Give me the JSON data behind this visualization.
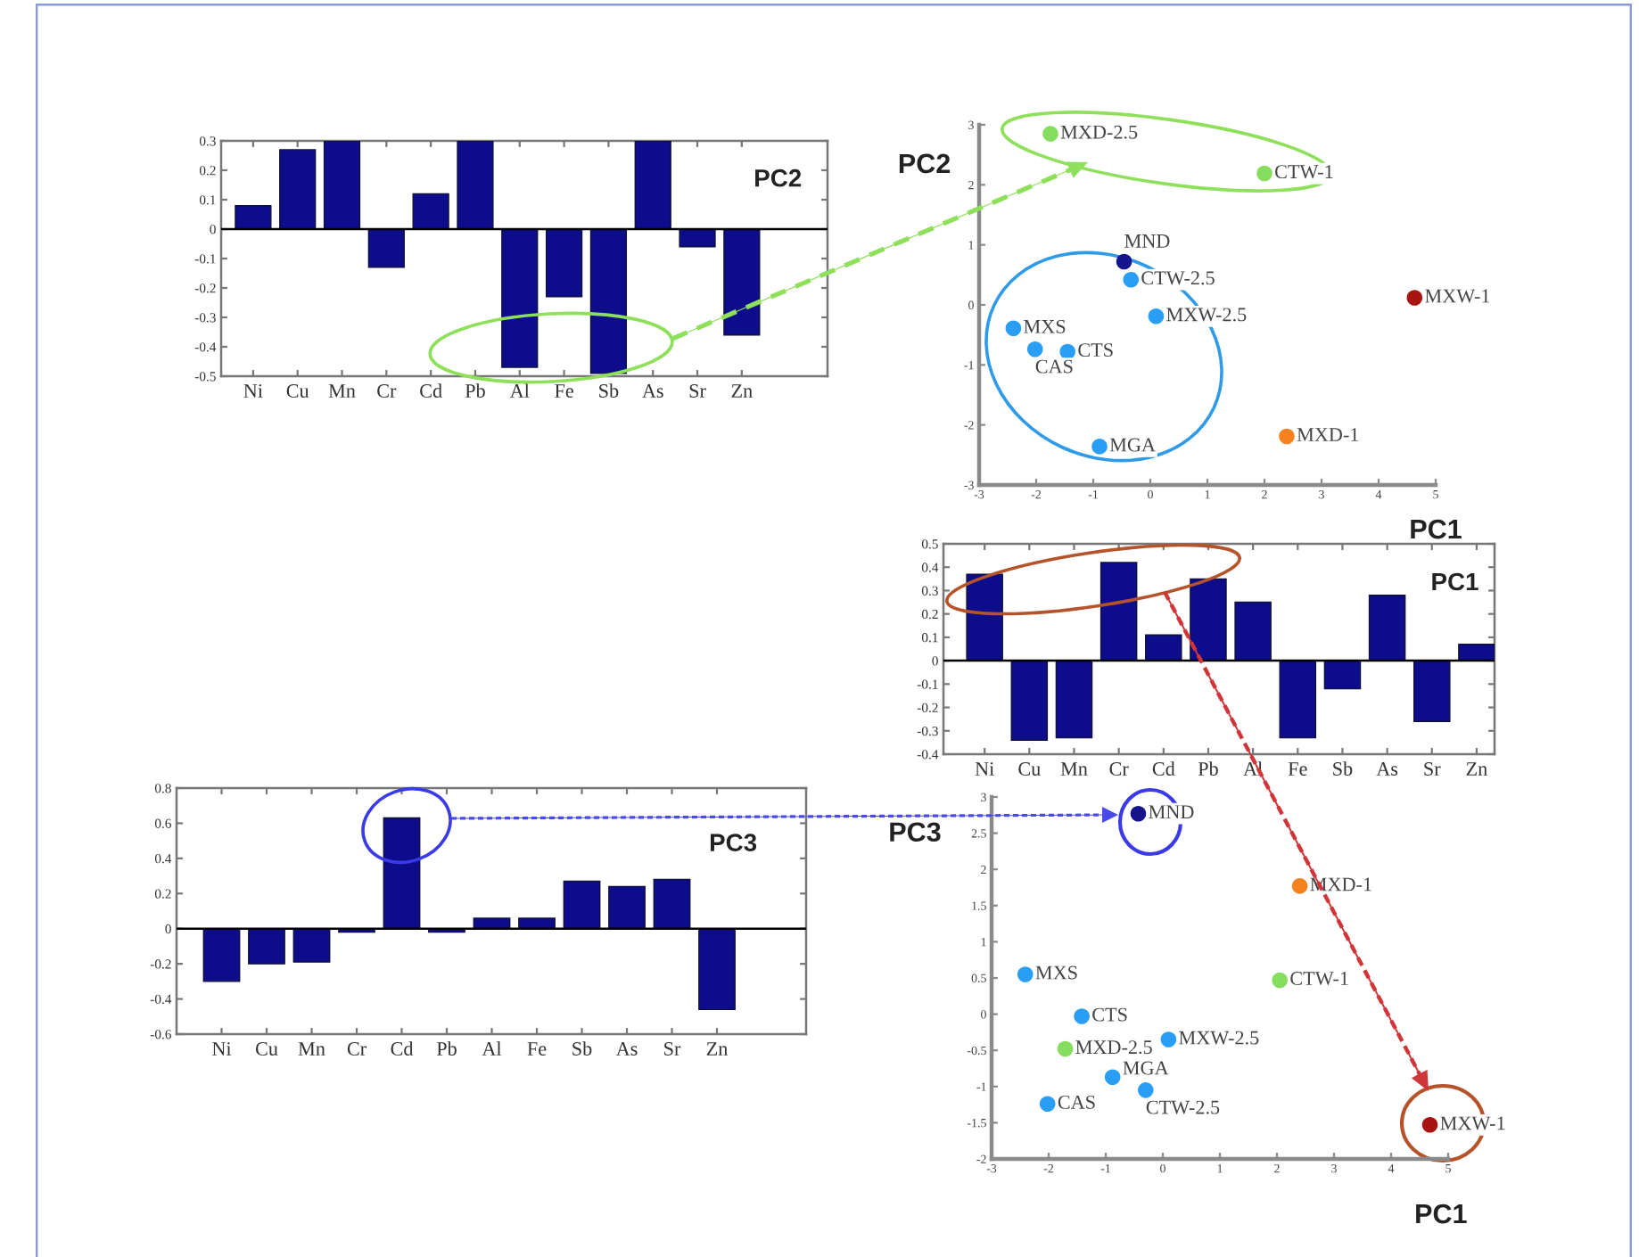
{
  "chart_data": [
    {
      "type": "bar",
      "title": "PC2",
      "categories": [
        "Ni",
        "Cu",
        "Mn",
        "Cr",
        "Cd",
        "Pb",
        "Al",
        "Fe",
        "Sb",
        "As",
        "Sr",
        "Zn"
      ],
      "values": [
        0.08,
        0.27,
        0.3,
        -0.13,
        0.12,
        0.3,
        -0.47,
        -0.23,
        -0.49,
        0.3,
        -0.06,
        -0.36
      ],
      "color": "#0d0d8c",
      "ylim": [
        -0.5,
        0.3
      ],
      "yticks": [
        -0.5,
        -0.4,
        -0.3,
        -0.2,
        -0.1,
        0,
        0.1,
        0.2,
        0.3
      ],
      "ref_lines": [
        {
          "axis": "y",
          "value": 0,
          "color": "#000000"
        }
      ]
    },
    {
      "type": "scatter",
      "xlabel": "PC1",
      "ylabel": "PC2",
      "xlim": [
        -3,
        5
      ],
      "ylim": [
        -3,
        3
      ],
      "xticks": [
        -3,
        -2,
        -1,
        0,
        1,
        2,
        3,
        4,
        5
      ],
      "yticks": [
        -3,
        -2,
        -1,
        0,
        1,
        2,
        3
      ],
      "marker": "circle",
      "series": [
        {
          "name": "MND",
          "color": "#14148c",
          "x": [
            -0.46
          ],
          "values": [
            0.72
          ]
        },
        {
          "name": "MXD-1",
          "color": "#f5821f",
          "x": [
            2.39
          ],
          "values": [
            -2.19
          ]
        },
        {
          "name": "MXS",
          "color": "#2a9df4",
          "x": [
            -2.4
          ],
          "values": [
            -0.39
          ]
        },
        {
          "name": "CTW-1",
          "color": "#86dc5e",
          "x": [
            2.0
          ],
          "values": [
            2.19
          ]
        },
        {
          "name": "CTS",
          "color": "#2a9df4",
          "x": [
            -1.45
          ],
          "values": [
            -0.78
          ]
        },
        {
          "name": "MXW-2.5",
          "color": "#2a9df4",
          "x": [
            0.1
          ],
          "values": [
            -0.19
          ]
        },
        {
          "name": "MXD-2.5",
          "color": "#86dc5e",
          "x": [
            -1.75
          ],
          "values": [
            2.85
          ]
        },
        {
          "name": "MGA",
          "color": "#2a9df4",
          "x": [
            -0.89
          ],
          "values": [
            -2.36
          ]
        },
        {
          "name": "CTW-2.5",
          "color": "#2a9df4",
          "x": [
            -0.34
          ],
          "values": [
            0.42
          ]
        },
        {
          "name": "CAS",
          "color": "#2a9df4",
          "x": [
            -2.02
          ],
          "values": [
            -0.74
          ]
        },
        {
          "name": "MXW-1",
          "color": "#a8140f",
          "x": [
            4.63
          ],
          "values": [
            0.12
          ]
        }
      ]
    },
    {
      "type": "bar",
      "title": "PC1",
      "categories": [
        "Ni",
        "Cu",
        "Mn",
        "Cr",
        "Cd",
        "Pb",
        "Al",
        "Fe",
        "Sb",
        "As",
        "Sr",
        "Zn"
      ],
      "values": [
        0.37,
        -0.34,
        -0.33,
        0.42,
        0.11,
        0.35,
        0.25,
        -0.33,
        -0.12,
        0.28,
        -0.26,
        0.07
      ],
      "color": "#0d0d8c",
      "ylim": [
        -0.4,
        0.5
      ],
      "yticks": [
        -0.4,
        -0.3,
        -0.2,
        -0.1,
        0,
        0.1,
        0.2,
        0.3,
        0.4,
        0.5
      ],
      "ref_lines": [
        {
          "axis": "y",
          "value": 0,
          "color": "#000000"
        }
      ]
    },
    {
      "type": "bar",
      "title": "PC3",
      "categories": [
        "Ni",
        "Cu",
        "Mn",
        "Cr",
        "Cd",
        "Pb",
        "Al",
        "Fe",
        "Sb",
        "As",
        "Sr",
        "Zn"
      ],
      "values": [
        -0.3,
        -0.2,
        -0.19,
        -0.02,
        0.63,
        -0.02,
        0.06,
        0.06,
        0.27,
        0.24,
        0.28,
        -0.46
      ],
      "color": "#0d0d8c",
      "ylim": [
        -0.6,
        0.8
      ],
      "yticks": [
        -0.6,
        -0.4,
        -0.2,
        0,
        0.2,
        0.4,
        0.6,
        0.8
      ],
      "ref_lines": [
        {
          "axis": "y",
          "value": 0,
          "color": "#000000"
        }
      ]
    },
    {
      "type": "scatter",
      "xlabel": "PC1",
      "ylabel": "PC3",
      "xlim": [
        -3,
        5
      ],
      "ylim": [
        -2,
        3
      ],
      "xticks": [
        -3,
        -2,
        -1,
        0,
        1,
        2,
        3,
        4,
        5
      ],
      "yticks": [
        -2,
        -1.5,
        -1,
        -0.5,
        0,
        0.5,
        1,
        1.5,
        2,
        2.5,
        3
      ],
      "marker": "circle",
      "series": [
        {
          "name": "MND",
          "color": "#14148c",
          "x": [
            -0.43
          ],
          "values": [
            2.77
          ]
        },
        {
          "name": "MXD-1",
          "color": "#f5821f",
          "x": [
            2.4
          ],
          "values": [
            1.77
          ]
        },
        {
          "name": "MXS",
          "color": "#2a9df4",
          "x": [
            -2.41
          ],
          "values": [
            0.55
          ]
        },
        {
          "name": "CTW-1",
          "color": "#86dc5e",
          "x": [
            2.05
          ],
          "values": [
            0.47
          ]
        },
        {
          "name": "CTS",
          "color": "#2a9df4",
          "x": [
            -1.42
          ],
          "values": [
            -0.03
          ]
        },
        {
          "name": "MXW-2.5",
          "color": "#2a9df4",
          "x": [
            0.1
          ],
          "values": [
            -0.35
          ]
        },
        {
          "name": "MXD-2.5",
          "color": "#86dc5e",
          "x": [
            -1.71
          ],
          "values": [
            -0.48
          ]
        },
        {
          "name": "MGA",
          "color": "#2a9df4",
          "x": [
            -0.88
          ],
          "values": [
            -0.87
          ]
        },
        {
          "name": "CTW-2.5",
          "color": "#2a9df4",
          "x": [
            -0.3
          ],
          "values": [
            -1.05
          ]
        },
        {
          "name": "CAS",
          "color": "#2a9df4",
          "x": [
            -2.02
          ],
          "values": [
            -1.24
          ]
        },
        {
          "name": "MXW-1",
          "color": "#a8140f",
          "x": [
            4.68
          ],
          "values": [
            -1.53
          ]
        }
      ]
    }
  ]
}
